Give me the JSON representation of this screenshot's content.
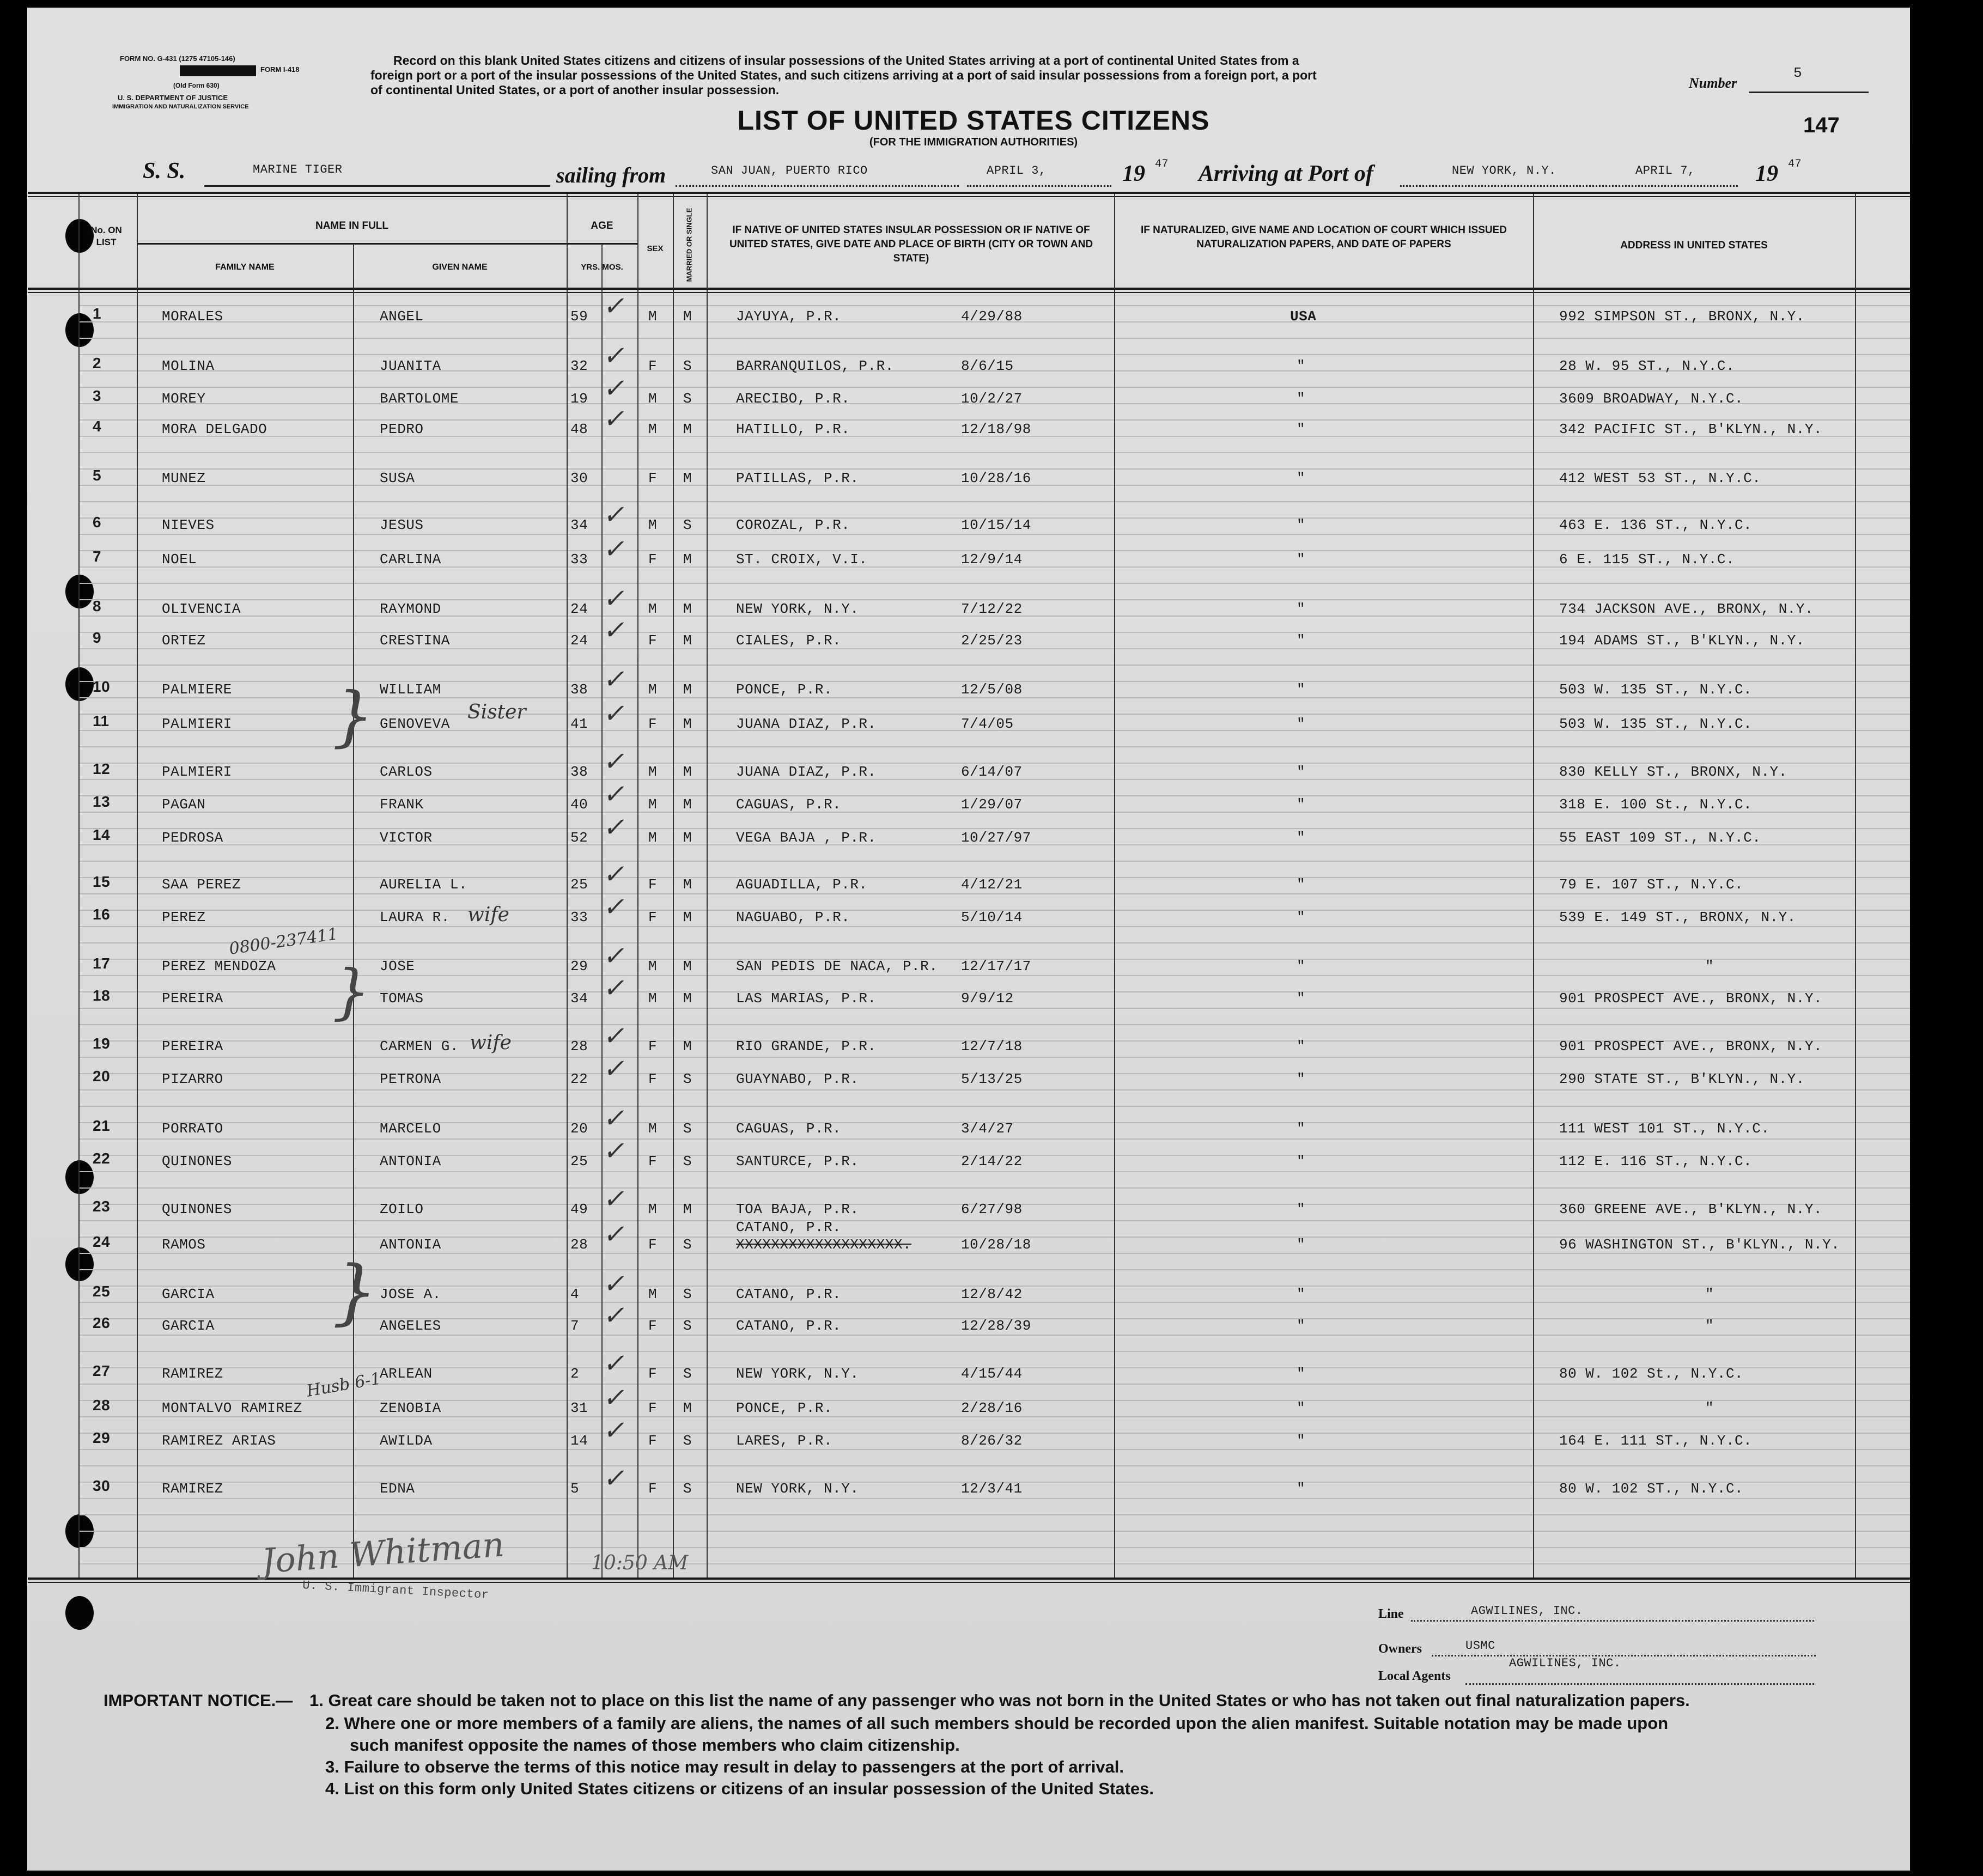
{
  "form_header": {
    "form_no": "FORM NO. G-431 (1275 47105-146)",
    "form_code": "FORM I-418",
    "old_form": "(Old Form 630)",
    "department": "U. S. DEPARTMENT OF JUSTICE",
    "service": "IMMIGRATION AND NATURALIZATION SERVICE",
    "instructions": [
      "Record on this blank United States citizens and citizens of insular possessions of the United States arriving at a port of continental United States from a",
      "foreign port or a port of the insular possessions of the United States, and such citizens arriving at a port of said insular possessions from a foreign port, a port",
      "of continental United States, or a port of another insular possession."
    ],
    "number_label": "Number",
    "number_value": "5",
    "page_number": "147",
    "title": "LIST OF UNITED STATES CITIZENS",
    "subtitle": "(FOR THE IMMIGRATION AUTHORITIES)"
  },
  "voyage": {
    "ss_label": "S. S.",
    "ship": "MARINE   TIGER",
    "sailing_label": "sailing from",
    "from_port": "SAN JUAN, PUERTO RICO",
    "depart_date": "APRIL 3,",
    "year_prefix": "19",
    "depart_year": "47",
    "arriving_label": "Arriving at Port of",
    "arrival_port": "NEW YORK, N.Y.",
    "arrival_date": "APRIL 7,",
    "arrival_year": "47"
  },
  "columns": {
    "no": "No. ON LIST",
    "name_in_full": "NAME IN FULL",
    "family_name": "FAMILY NAME",
    "given_name": "GIVEN NAME",
    "age": "AGE",
    "yrs_mos": "YRS. MOS.",
    "sex": "SEX",
    "married_single": "MARRIED OR SINGLE",
    "native": "IF NATIVE OF UNITED STATES INSULAR POSSESSION OR IF NATIVE OF UNITED STATES, GIVE DATE AND PLACE OF BIRTH (CITY OR TOWN AND STATE)",
    "naturalized": "IF NATURALIZED, GIVE NAME AND LOCATION OF COURT WHICH ISSUED NATURALIZATION PAPERS, AND DATE OF PAPERS",
    "address": "ADDRESS IN UNITED STATES"
  },
  "rows": [
    {
      "no": "1",
      "family": "MORALES",
      "given": "ANGEL",
      "age": "59",
      "sex": "M",
      "ms": "M",
      "place": "JAYUYA, P.R.",
      "dob": "4/29/88",
      "nat": "USA",
      "address": "992 SIMPSON ST., BRONX, N.Y.",
      "checked": true
    },
    {
      "no": "2",
      "family": "MOLINA",
      "given": "JUANITA",
      "age": "32",
      "sex": "F",
      "ms": "S",
      "place": "BARRANQUILOS, P.R.",
      "dob": "8/6/15",
      "nat": "\"",
      "address": "28 W. 95 ST., N.Y.C.",
      "checked": true
    },
    {
      "no": "3",
      "family": "MOREY",
      "given": "BARTOLOME",
      "age": "19",
      "sex": "M",
      "ms": "S",
      "place": "ARECIBO, P.R.",
      "dob": "10/2/27",
      "nat": "\"",
      "address": "3609 BROADWAY, N.Y.C.",
      "checked": true
    },
    {
      "no": "4",
      "family": "MORA DELGADO",
      "given": "PEDRO",
      "age": "48",
      "sex": "M",
      "ms": "M",
      "place": "HATILLO, P.R.",
      "dob": "12/18/98",
      "nat": "\"",
      "address": "342 PACIFIC ST., B'KLYN., N.Y.",
      "checked": true
    },
    {
      "no": "5",
      "family": "MUNEZ",
      "given": "SUSA",
      "age": "30",
      "sex": "F",
      "ms": "M",
      "place": "PATILLAS, P.R.",
      "dob": "10/28/16",
      "nat": "\"",
      "address": "412 WEST 53 ST., N.Y.C.",
      "checked": false
    },
    {
      "no": "6",
      "family": "NIEVES",
      "given": "JESUS",
      "age": "34",
      "sex": "M",
      "ms": "S",
      "place": "COROZAL, P.R.",
      "dob": "10/15/14",
      "nat": "\"",
      "address": "463 E. 136 ST., N.Y.C.",
      "checked": true
    },
    {
      "no": "7",
      "family": "NOEL",
      "given": "CARLINA",
      "age": "33",
      "sex": "F",
      "ms": "M",
      "place": "ST. CROIX, V.I.",
      "dob": "12/9/14",
      "nat": "\"",
      "address": "6 E. 115 ST., N.Y.C.",
      "checked": true
    },
    {
      "no": "8",
      "family": "OLIVENCIA",
      "given": "RAYMOND",
      "age": "24",
      "sex": "M",
      "ms": "M",
      "place": "NEW YORK, N.Y.",
      "dob": "7/12/22",
      "nat": "\"",
      "address": "734 JACKSON AVE.,  BRONX, N.Y.",
      "checked": true
    },
    {
      "no": "9",
      "family": "ORTEZ",
      "given": "CRESTINA",
      "age": "24",
      "sex": "F",
      "ms": "M",
      "place": "CIALES, P.R.",
      "dob": "2/25/23",
      "nat": "\"",
      "address": "194 ADAMS ST., B'KLYN., N.Y.",
      "checked": true
    },
    {
      "no": "10",
      "family": "PALMIERE",
      "given": "WILLIAM",
      "age": "38",
      "sex": "M",
      "ms": "M",
      "place": "PONCE, P.R.",
      "dob": "12/5/08",
      "nat": "\"",
      "address": "503 W. 135 ST., N.Y.C.",
      "checked": true
    },
    {
      "no": "11",
      "family": "PALMIERI",
      "given": "GENOVEVA",
      "age": "41",
      "sex": "F",
      "ms": "M",
      "place": "JUANA DIAZ, P.R.",
      "dob": "7/4/05",
      "nat": "\"",
      "address": "503 W. 135 ST., N.Y.C.",
      "checked": true
    },
    {
      "no": "12",
      "family": "PALMIERI",
      "given": "CARLOS",
      "age": "38",
      "sex": "M",
      "ms": "M",
      "place": "JUANA DIAZ, P.R.",
      "dob": "6/14/07",
      "nat": "\"",
      "address": "830 KELLY ST., BRONX, N.Y.",
      "checked": true
    },
    {
      "no": "13",
      "family": "PAGAN",
      "given": "FRANK",
      "age": "40",
      "sex": "M",
      "ms": "M",
      "place": "CAGUAS, P.R.",
      "dob": "1/29/07",
      "nat": "\"",
      "address": "318 E. 100 St., N.Y.C.",
      "checked": true
    },
    {
      "no": "14",
      "family": "PEDROSA",
      "given": "VICTOR",
      "age": "52",
      "sex": "M",
      "ms": "M",
      "place": "VEGA BAJA , P.R.",
      "dob": "10/27/97",
      "nat": "\"",
      "address": "55 EAST 109 ST., N.Y.C.",
      "checked": true
    },
    {
      "no": "15",
      "family": "SAA PEREZ",
      "given": "AURELIA L.",
      "age": "25",
      "sex": "F",
      "ms": "M",
      "place": "AGUADILLA, P.R.",
      "dob": "4/12/21",
      "nat": "\"",
      "address": "79 E. 107 ST., N.Y.C.",
      "checked": true
    },
    {
      "no": "16",
      "family": "PEREZ",
      "given": "LAURA R.",
      "age": "33",
      "sex": "F",
      "ms": "M",
      "place": "NAGUABO, P.R.",
      "dob": "5/10/14",
      "nat": "\"",
      "address": "539 E. 149 ST., BRONX, N.Y.",
      "checked": true
    },
    {
      "no": "17",
      "family": "PEREZ MENDOZA",
      "given": "JOSE",
      "age": "29",
      "sex": "M",
      "ms": "M",
      "place": "SAN PEDIS DE NACA, P.R.",
      "dob": "12/17/17",
      "nat": "\"",
      "address": "\"",
      "checked": true
    },
    {
      "no": "18",
      "family": "PEREIRA",
      "given": "TOMAS",
      "age": "34",
      "sex": "M",
      "ms": "M",
      "place": "LAS MARIAS, P.R.",
      "dob": "9/9/12",
      "nat": "\"",
      "address": "901 PROSPECT AVE., BRONX, N.Y.",
      "checked": true
    },
    {
      "no": "19",
      "family": "PEREIRA",
      "given": "CARMEN G.",
      "age": "28",
      "sex": "F",
      "ms": "M",
      "place": "RIO GRANDE, P.R.",
      "dob": "12/7/18",
      "nat": "\"",
      "address": "901 PROSPECT AVE., BRONX, N.Y.",
      "checked": true
    },
    {
      "no": "20",
      "family": "PIZARRO",
      "given": "PETRONA",
      "age": "22",
      "sex": "F",
      "ms": "S",
      "place": "GUAYNABO, P.R.",
      "dob": "5/13/25",
      "nat": "\"",
      "address": "290 STATE ST., B'KLYN., N.Y.",
      "checked": true
    },
    {
      "no": "21",
      "family": "PORRATO",
      "given": "MARCELO",
      "age": "20",
      "sex": "M",
      "ms": "S",
      "place": "CAGUAS, P.R.",
      "dob": "3/4/27",
      "nat": "\"",
      "address": "111 WEST 101 ST., N.Y.C.",
      "checked": true
    },
    {
      "no": "22",
      "family": "QUINONES",
      "given": "ANTONIA",
      "age": "25",
      "sex": "F",
      "ms": "S",
      "place": "SANTURCE, P.R.",
      "dob": "2/14/22",
      "nat": "\"",
      "address": "112 E. 116 ST., N.Y.C.",
      "checked": true
    },
    {
      "no": "23",
      "family": "QUINONES",
      "given": "ZOILO",
      "age": "49",
      "sex": "M",
      "ms": "M",
      "place": "TOA BAJA, P.R.",
      "dob": "6/27/98",
      "nat": "\"",
      "address": "360 GREENE AVE., B'KLYN., N.Y.",
      "checked": true
    },
    {
      "no": "24",
      "family": "RAMOS",
      "given": "ANTONIA",
      "age": "28",
      "sex": "F",
      "ms": "S",
      "place": "CATANO, P.R.",
      "place_struck": "XXXXXXXXXXXXXXXXXXX.",
      "dob": "10/28/18",
      "nat": "\"",
      "address": "96 WASHINGTON ST., B'KLYN., N.Y.",
      "checked": true
    },
    {
      "no": "25",
      "family": "GARCIA",
      "given": "JOSE A.",
      "age": "4",
      "sex": "M",
      "ms": "S",
      "place": "CATANO, P.R.",
      "dob": "12/8/42",
      "nat": "\"",
      "address": "\"",
      "checked": true
    },
    {
      "no": "26",
      "family": "GARCIA",
      "given": "ANGELES",
      "age": "7",
      "sex": "F",
      "ms": "S",
      "place": "CATANO, P.R.",
      "dob": "12/28/39",
      "nat": "\"",
      "address": "\"",
      "checked": true
    },
    {
      "no": "27",
      "family": "RAMIREZ",
      "given": "ARLEAN",
      "age": "2",
      "sex": "F",
      "ms": "S",
      "place": "NEW YORK, N.Y.",
      "dob": "4/15/44",
      "nat": "\"",
      "address": "80 W. 102 St., N.Y.C.",
      "checked": true
    },
    {
      "no": "28",
      "family": "MONTALVO RAMIREZ",
      "given": "ZENOBIA",
      "age": "31",
      "sex": "F",
      "ms": "M",
      "place": "PONCE, P.R.",
      "dob": "2/28/16",
      "nat": "\"",
      "address": "\"",
      "checked": true
    },
    {
      "no": "29",
      "family": "RAMIREZ ARIAS",
      "given": "AWILDA",
      "age": "14",
      "sex": "F",
      "ms": "S",
      "place": "LARES, P.R.",
      "dob": "8/26/32",
      "nat": "\"",
      "address": "164 E. 111 ST., N.Y.C.",
      "checked": true
    },
    {
      "no": "30",
      "family": "RAMIREZ",
      "given": "EDNA",
      "age": "5",
      "sex": "F",
      "ms": "S",
      "place": "NEW YORK, N.Y.",
      "dob": "12/3/41",
      "nat": "\"",
      "address": "80 W. 102 ST., N.Y.C.",
      "checked": true
    }
  ],
  "annotations": {
    "row11": "Sister",
    "row16": "wife",
    "row17_left": "0800-237411",
    "row19": "wife",
    "row28": "Husb 6-1",
    "signature_time": "10:50 AM"
  },
  "footer": {
    "inspector_label": "U. S. Immigrant Inspector",
    "line_label": "Line",
    "line_value": "AGWILINES, INC.",
    "owners_label": "Owners",
    "owners_value": "USMC",
    "agents_label": "Local Agents",
    "agents_value": "AGWILINES, INC.",
    "notice_label": "IMPORTANT NOTICE.—",
    "notice": [
      "1. Great care should be taken not to place on this list the name of any passenger who was not born in the United States or who has not taken out final naturalization papers.",
      "2. Where one or more members of a family are aliens, the names of all such members should be recorded upon the alien manifest.   Suitable notation may be made upon",
      "such manifest opposite the names of those members who claim citizenship.",
      "3. Failure to observe the terms of this notice may result in delay to passengers at the port of arrival.",
      "4. List on this form only United States citizens or citizens of an insular possession of the United States."
    ]
  }
}
